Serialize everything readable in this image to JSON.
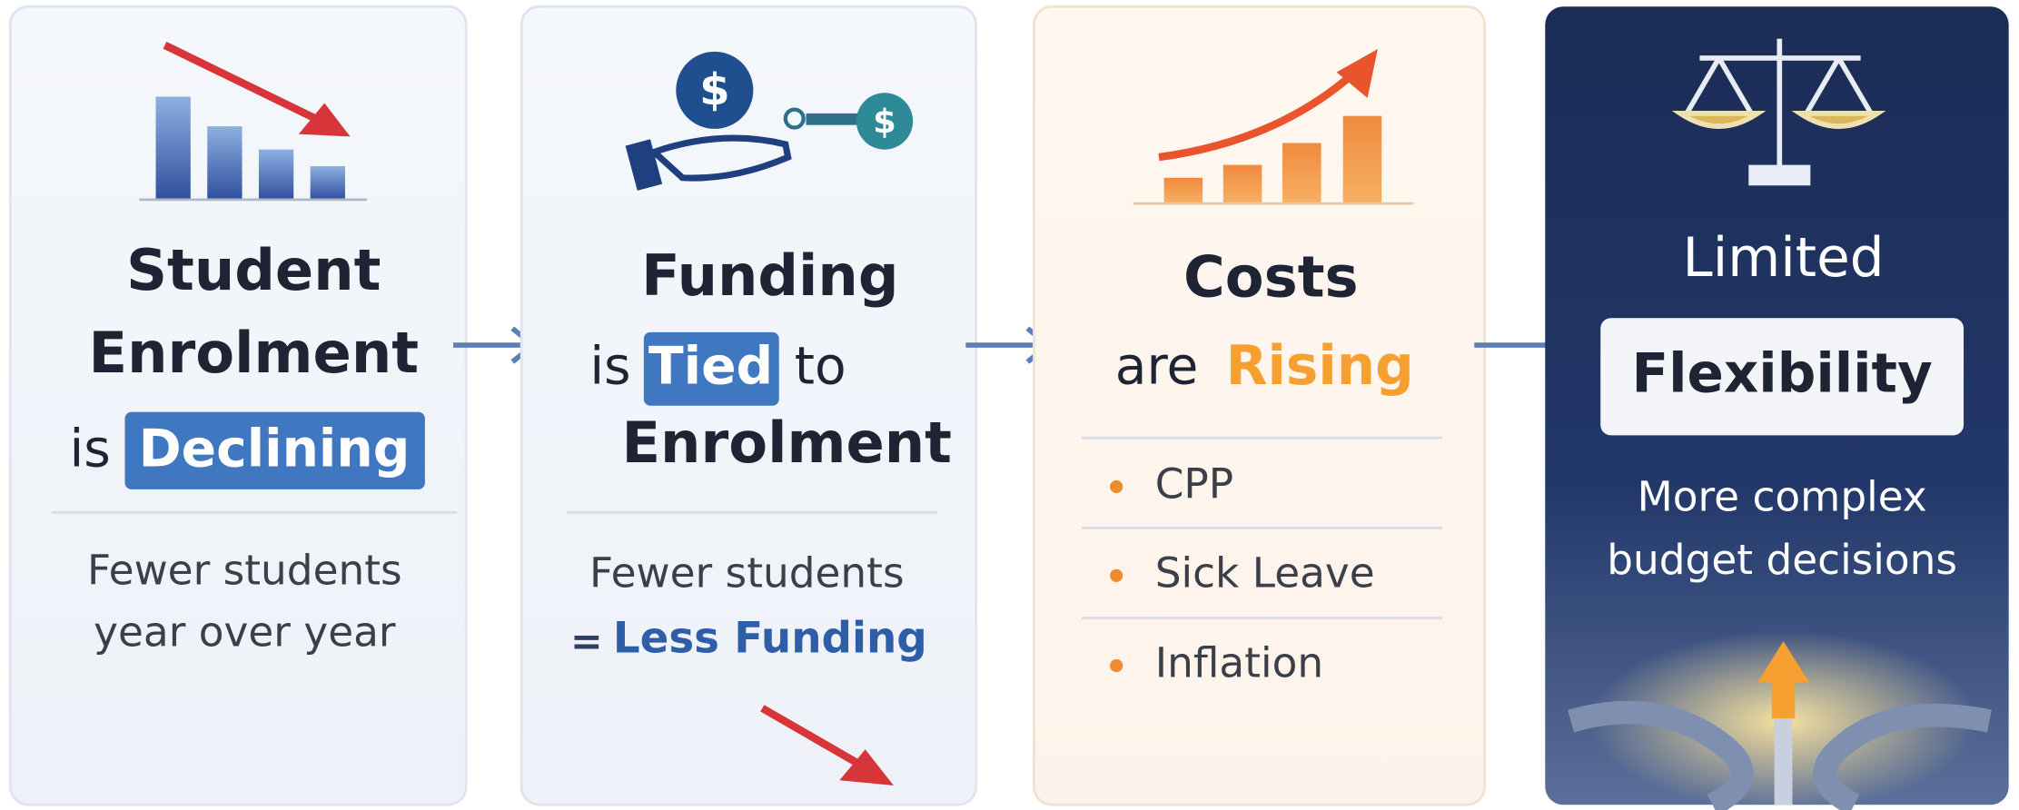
{
  "cards": [
    {
      "title": [
        "Student",
        "Enrolment"
      ],
      "lead": "is",
      "highlight": "Declining",
      "description": [
        "Fewer students",
        "year over year"
      ]
    },
    {
      "title": "Funding",
      "lead": "is",
      "highlight": "Tied",
      "trail": "to",
      "title_end": "Enrolment",
      "description": "Fewer students",
      "equals": "=",
      "result": "Less Funding"
    },
    {
      "title": "Costs",
      "lead": "are",
      "highlight": "Rising",
      "bullets": [
        "CPP",
        "Sick Leave",
        "Inflation"
      ]
    },
    {
      "title": "Limited",
      "highlight": "Flexibility",
      "description": [
        "More complex",
        "budget decisions"
      ]
    }
  ]
}
